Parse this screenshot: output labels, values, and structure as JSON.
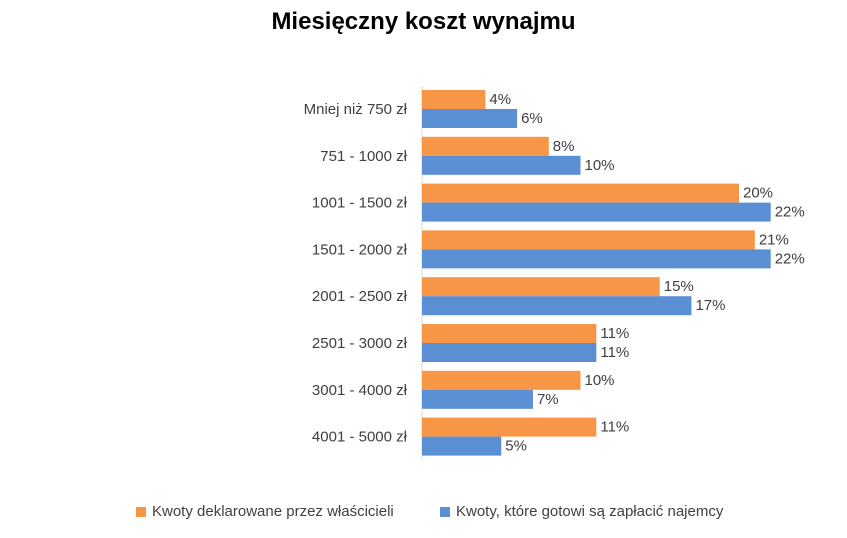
{
  "chart_data": {
    "type": "bar",
    "orientation": "horizontal",
    "title": "Miesięczny koszt wynajmu",
    "categories": [
      "Mniej niż 750 zł",
      "751 - 1000 zł",
      "1001 - 1500 zł",
      "1501 - 2000 zł",
      "2001 - 2500 zł",
      "2501 - 3000 zł",
      "3001 - 4000 zł",
      "4001 - 5000 zł"
    ],
    "series": [
      {
        "name": "Kwoty deklarowane przez właścicieli",
        "color": "#F79646",
        "values": [
          4,
          8,
          20,
          21,
          15,
          11,
          10,
          11
        ]
      },
      {
        "name": "Kwoty, które gotowi są zapłacić najemcy",
        "color": "#5B8FD3",
        "values": [
          6,
          10,
          22,
          22,
          17,
          11,
          7,
          5
        ]
      }
    ],
    "value_suffix": "%",
    "xlim": [
      0,
      23
    ],
    "grid": false,
    "legend_position": "bottom"
  }
}
